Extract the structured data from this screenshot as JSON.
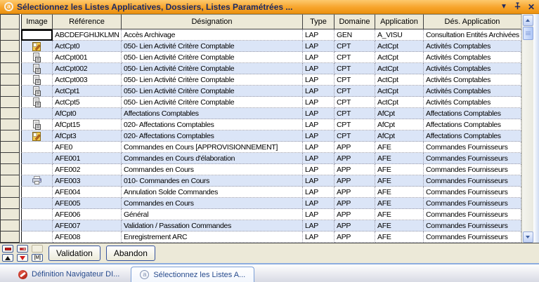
{
  "window": {
    "title": "Sélectionnez les Listes Applicatives, Dossiers, Listes Paramétrées ...",
    "controls": {
      "chevron": "▼",
      "close": "✕"
    }
  },
  "icons": {
    "app_glyph": "a"
  },
  "colors": {
    "titlebar_orange": "#f7a42c",
    "title_text": "#1c2a63",
    "header_beige": "#ece9d8",
    "row_alt_blue": "#dbe5f7",
    "tab_text": "#274b8d",
    "nav_red": "#cf1d1d"
  },
  "table": {
    "columns": [
      "Image",
      "Référence",
      "Désignation",
      "Type",
      "Domaine",
      "Application",
      "Dés. Application"
    ],
    "rows": [
      {
        "icon": "none",
        "reference": "ABCDEFGHIJKLMN",
        "designation": "Accès Archivage",
        "type": "LAP",
        "domaine": "GEN",
        "application": "A_VISU",
        "des_application": "Consultation Entités Archivées",
        "focused": true
      },
      {
        "icon": "edit-note",
        "reference": "ActCpt0",
        "designation": "050- Lien Activité Critère Comptable",
        "type": "LAP",
        "domaine": "CPT",
        "application": "ActCpt",
        "des_application": "Activités Comptables"
      },
      {
        "icon": "report",
        "reference": "ActCpt001",
        "designation": "050- Lien Activité Critère Comptable",
        "type": "LAP",
        "domaine": "CPT",
        "application": "ActCpt",
        "des_application": "Activités Comptables"
      },
      {
        "icon": "report",
        "reference": "ActCpt002",
        "designation": "050- Lien Activité Critère Comptable",
        "type": "LAP",
        "domaine": "CPT",
        "application": "ActCpt",
        "des_application": "Activités Comptables"
      },
      {
        "icon": "report",
        "reference": "ActCpt003",
        "designation": "050- Lien Activité Critère Comptable",
        "type": "LAP",
        "domaine": "CPT",
        "application": "ActCpt",
        "des_application": "Activités Comptables"
      },
      {
        "icon": "report",
        "reference": "ActCpt1",
        "designation": "050- Lien Activité Critère Comptable",
        "type": "LAP",
        "domaine": "CPT",
        "application": "ActCpt",
        "des_application": "Activités Comptables"
      },
      {
        "icon": "report",
        "reference": "ActCpt5",
        "designation": "050- Lien Activité Critère Comptable",
        "type": "LAP",
        "domaine": "CPT",
        "application": "ActCpt",
        "des_application": "Activités Comptables"
      },
      {
        "icon": "none",
        "reference": "AfCpt0",
        "designation": "Affectations Comptables",
        "type": "LAP",
        "domaine": "CPT",
        "application": "AfCpt",
        "des_application": "Affectations Comptables"
      },
      {
        "icon": "report",
        "reference": "AfCpt15",
        "designation": "020- Affectations Comptables",
        "type": "LAP",
        "domaine": "CPT",
        "application": "AfCpt",
        "des_application": "Affectations Comptables"
      },
      {
        "icon": "edit-note",
        "reference": "AfCpt3",
        "designation": "020- Affectations Comptables",
        "type": "LAP",
        "domaine": "CPT",
        "application": "AfCpt",
        "des_application": "Affectations Comptables"
      },
      {
        "icon": "none",
        "reference": "AFE0",
        "designation": "Commandes en Cours [APPROVISIONNEMENT]",
        "type": "LAP",
        "domaine": "APP",
        "application": "AFE",
        "des_application": "Commandes Fournisseurs"
      },
      {
        "icon": "none",
        "reference": "AFE001",
        "designation": "Commandes en Cours d'élaboration",
        "type": "LAP",
        "domaine": "APP",
        "application": "AFE",
        "des_application": "Commandes Fournisseurs"
      },
      {
        "icon": "none",
        "reference": "AFE002",
        "designation": "Commandes en Cours",
        "type": "LAP",
        "domaine": "APP",
        "application": "AFE",
        "des_application": "Commandes Fournisseurs"
      },
      {
        "icon": "printer",
        "reference": "AFE003",
        "designation": "010- Commandes en Cours",
        "type": "LAP",
        "domaine": "APP",
        "application": "AFE",
        "des_application": "Commandes Fournisseurs"
      },
      {
        "icon": "none",
        "reference": "AFE004",
        "designation": "Annulation Solde Commandes",
        "type": "LAP",
        "domaine": "APP",
        "application": "AFE",
        "des_application": "Commandes Fournisseurs"
      },
      {
        "icon": "none",
        "reference": "AFE005",
        "designation": "Commandes en Cours",
        "type": "LAP",
        "domaine": "APP",
        "application": "AFE",
        "des_application": "Commandes Fournisseurs"
      },
      {
        "icon": "none",
        "reference": "AFE006",
        "designation": "Général",
        "type": "LAP",
        "domaine": "APP",
        "application": "AFE",
        "des_application": "Commandes Fournisseurs"
      },
      {
        "icon": "none",
        "reference": "AFE007",
        "designation": "Validation / Passation Commandes",
        "type": "LAP",
        "domaine": "APP",
        "application": "AFE",
        "des_application": "Commandes Fournisseurs"
      },
      {
        "icon": "none",
        "reference": "AFE008",
        "designation": "Enregistrement ARC",
        "type": "LAP",
        "domaine": "APP",
        "application": "AFE",
        "des_application": "Commandes Fournisseurs"
      }
    ]
  },
  "toolbar": {
    "nav_buttons": [
      {
        "icon": "red-bar"
      },
      {
        "icon": "red-bar-fade"
      },
      {
        "icon": "blank"
      },
      {
        "icon": "up-triangle-black"
      },
      {
        "icon": "down-triangle-red"
      },
      {
        "icon": "m-label",
        "label": "[M]"
      }
    ],
    "buttons": [
      {
        "label": "Validation"
      },
      {
        "label": "Abandon"
      }
    ]
  },
  "tabs": [
    {
      "label": "Définition Navigateur DI...",
      "icon": "forbidden",
      "active": false
    },
    {
      "label": "Sélectionnez les Listes A...",
      "icon": "a-circle",
      "active": true
    }
  ]
}
